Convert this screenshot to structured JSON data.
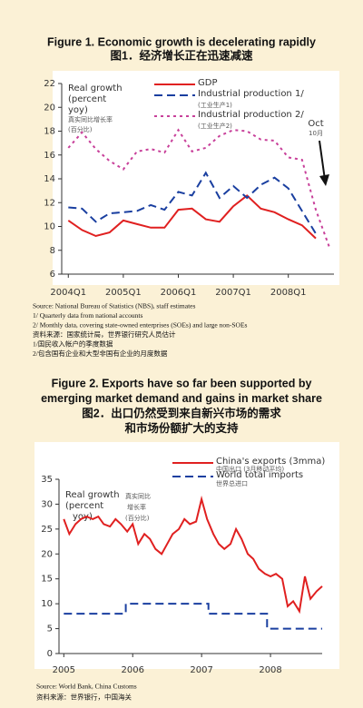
{
  "chart_data": [
    {
      "type": "line",
      "title": "Figure 1. Economic growth is decelerating rapidly",
      "subtitle": "图1．经济增长正在迅速减速",
      "ylabel_lines": [
        "Real growth",
        "(percent",
        "yoy)",
        "真实同比增长率",
        "(百分比)"
      ],
      "annotation_lines": [
        "Oct",
        "10月"
      ],
      "xlim": [
        2003.88,
        2008.83
      ],
      "ylim": [
        6,
        22
      ],
      "yticks": [
        6,
        8,
        10,
        12,
        14,
        16,
        18,
        20,
        22
      ],
      "xticks": [
        {
          "value": 2004,
          "label": "2004Q1"
        },
        {
          "value": 2005,
          "label": "2005Q1"
        },
        {
          "value": 2006,
          "label": "2006Q1"
        },
        {
          "value": 2007,
          "label": "2007Q1"
        },
        {
          "value": 2008,
          "label": "2008Q1"
        }
      ],
      "series": [
        {
          "name": "GDP",
          "color": "#e02020",
          "style": "solid",
          "x": [
            2004,
            2004.25,
            2004.5,
            2004.75,
            2005,
            2005.25,
            2005.5,
            2005.75,
            2006,
            2006.25,
            2006.5,
            2006.75,
            2007,
            2007.25,
            2007.5,
            2007.75,
            2008,
            2008.25,
            2008.5
          ],
          "values": [
            10.5,
            9.7,
            9.2,
            9.5,
            10.5,
            10.2,
            9.9,
            9.9,
            11.4,
            11.5,
            10.6,
            10.4,
            11.7,
            12.6,
            11.5,
            11.2,
            10.6,
            10.1,
            9.0
          ]
        },
        {
          "name": "Industrial production 1/",
          "label_zh": "(工业生产1)",
          "color": "#1a3fa0",
          "style": "dashed",
          "x": [
            2004,
            2004.25,
            2004.5,
            2004.75,
            2005,
            2005.25,
            2005.5,
            2005.75,
            2006,
            2006.25,
            2006.5,
            2006.75,
            2007,
            2007.25,
            2007.5,
            2007.75,
            2008,
            2008.25,
            2008.5
          ],
          "values": [
            11.6,
            11.5,
            10.4,
            11.1,
            11.2,
            11.3,
            11.8,
            11.4,
            12.9,
            12.6,
            14.5,
            12.4,
            13.4,
            12.4,
            13.5,
            14.1,
            13.2,
            11.3,
            9.4
          ]
        },
        {
          "name": "Industrial production 2/",
          "label_zh": "(工业生产2)",
          "color": "#c8409a",
          "style": "dotted",
          "x": [
            2004,
            2004.25,
            2004.5,
            2004.75,
            2005,
            2005.25,
            2005.5,
            2005.75,
            2006,
            2006.25,
            2006.5,
            2006.75,
            2007,
            2007.25,
            2007.5,
            2007.75,
            2008,
            2008.25,
            2008.5,
            2008.75
          ],
          "values": [
            16.6,
            17.9,
            16.5,
            15.5,
            14.8,
            16.3,
            16.5,
            16.2,
            18.1,
            16.3,
            16.6,
            17.6,
            18.1,
            18.0,
            17.3,
            17.2,
            15.8,
            15.6,
            11.4,
            8.2
          ]
        }
      ]
    },
    {
      "type": "line",
      "title_lines": [
        "Figure 2. Exports have so far been supported by",
        "emerging market demand and gains in market share",
        "图2．出口仍然受到来自新兴市场的需求",
        "和市场份额扩大的支持"
      ],
      "ylabel_lines": [
        "Real growth",
        "(percent",
        "yoy)",
        "真实同比",
        "增长率",
        "(百分比)"
      ],
      "xlim": [
        2004.93,
        2008.75
      ],
      "ylim": [
        0,
        35
      ],
      "yticks": [
        0,
        5,
        10,
        15,
        20,
        25,
        30,
        35
      ],
      "xticks": [
        2005,
        2006,
        2007,
        2008
      ],
      "series": [
        {
          "name": "China's exports (3mma)",
          "label_zh": "中国出口 (3月移动平均)",
          "color": "#e02020",
          "style": "solid",
          "x": [
            2005,
            2005.08,
            2005.17,
            2005.25,
            2005.33,
            2005.42,
            2005.5,
            2005.58,
            2005.67,
            2005.75,
            2005.83,
            2005.92,
            2006,
            2006.08,
            2006.17,
            2006.25,
            2006.33,
            2006.42,
            2006.5,
            2006.58,
            2006.67,
            2006.75,
            2006.83,
            2006.92,
            2007,
            2007.08,
            2007.17,
            2007.25,
            2007.33,
            2007.42,
            2007.5,
            2007.58,
            2007.67,
            2007.75,
            2007.83,
            2007.92,
            2008,
            2008.08,
            2008.17,
            2008.25,
            2008.33,
            2008.42,
            2008.5,
            2008.58,
            2008.67,
            2008.75
          ],
          "values": [
            27,
            24,
            26,
            27,
            27.5,
            27,
            27.5,
            26,
            25.5,
            27,
            26,
            24.5,
            26,
            22,
            24,
            23,
            21,
            20,
            22,
            24,
            25,
            27,
            26,
            26.5,
            31,
            27,
            24,
            22,
            21,
            22,
            25,
            23,
            20,
            19,
            17,
            16,
            15.5,
            16,
            15,
            9.5,
            10.5,
            8.5,
            15.5,
            11,
            12.5,
            13.5
          ]
        },
        {
          "name": "World total imports",
          "label_zh": "世界总进口",
          "color": "#1a3fa0",
          "style": "dashed",
          "x": [
            2005,
            2005.9,
            2005.9,
            2007.1,
            2007.1,
            2007.95,
            2007.95,
            2008.75
          ],
          "values": [
            8,
            8,
            10,
            10,
            8,
            8,
            5,
            5
          ]
        }
      ]
    }
  ],
  "figure1_notes": [
    "Source: National Bureau of Statistics (NBS), staff estimates",
    "1/ Quarterly data from national accounts",
    "2/ Monthly data, covering state-owned enterprises (SOEs) and large non-SOEs",
    "资料来源：国家统计局，世界银行研究人员估计",
    "1/国民收入帐户的季度数据",
    "2/包含国有企业和大型非国有企业的月度数据"
  ],
  "figure2_notes": [
    "Source: World Bank, China Customs",
    "资料来源：世界银行，中国海关"
  ]
}
